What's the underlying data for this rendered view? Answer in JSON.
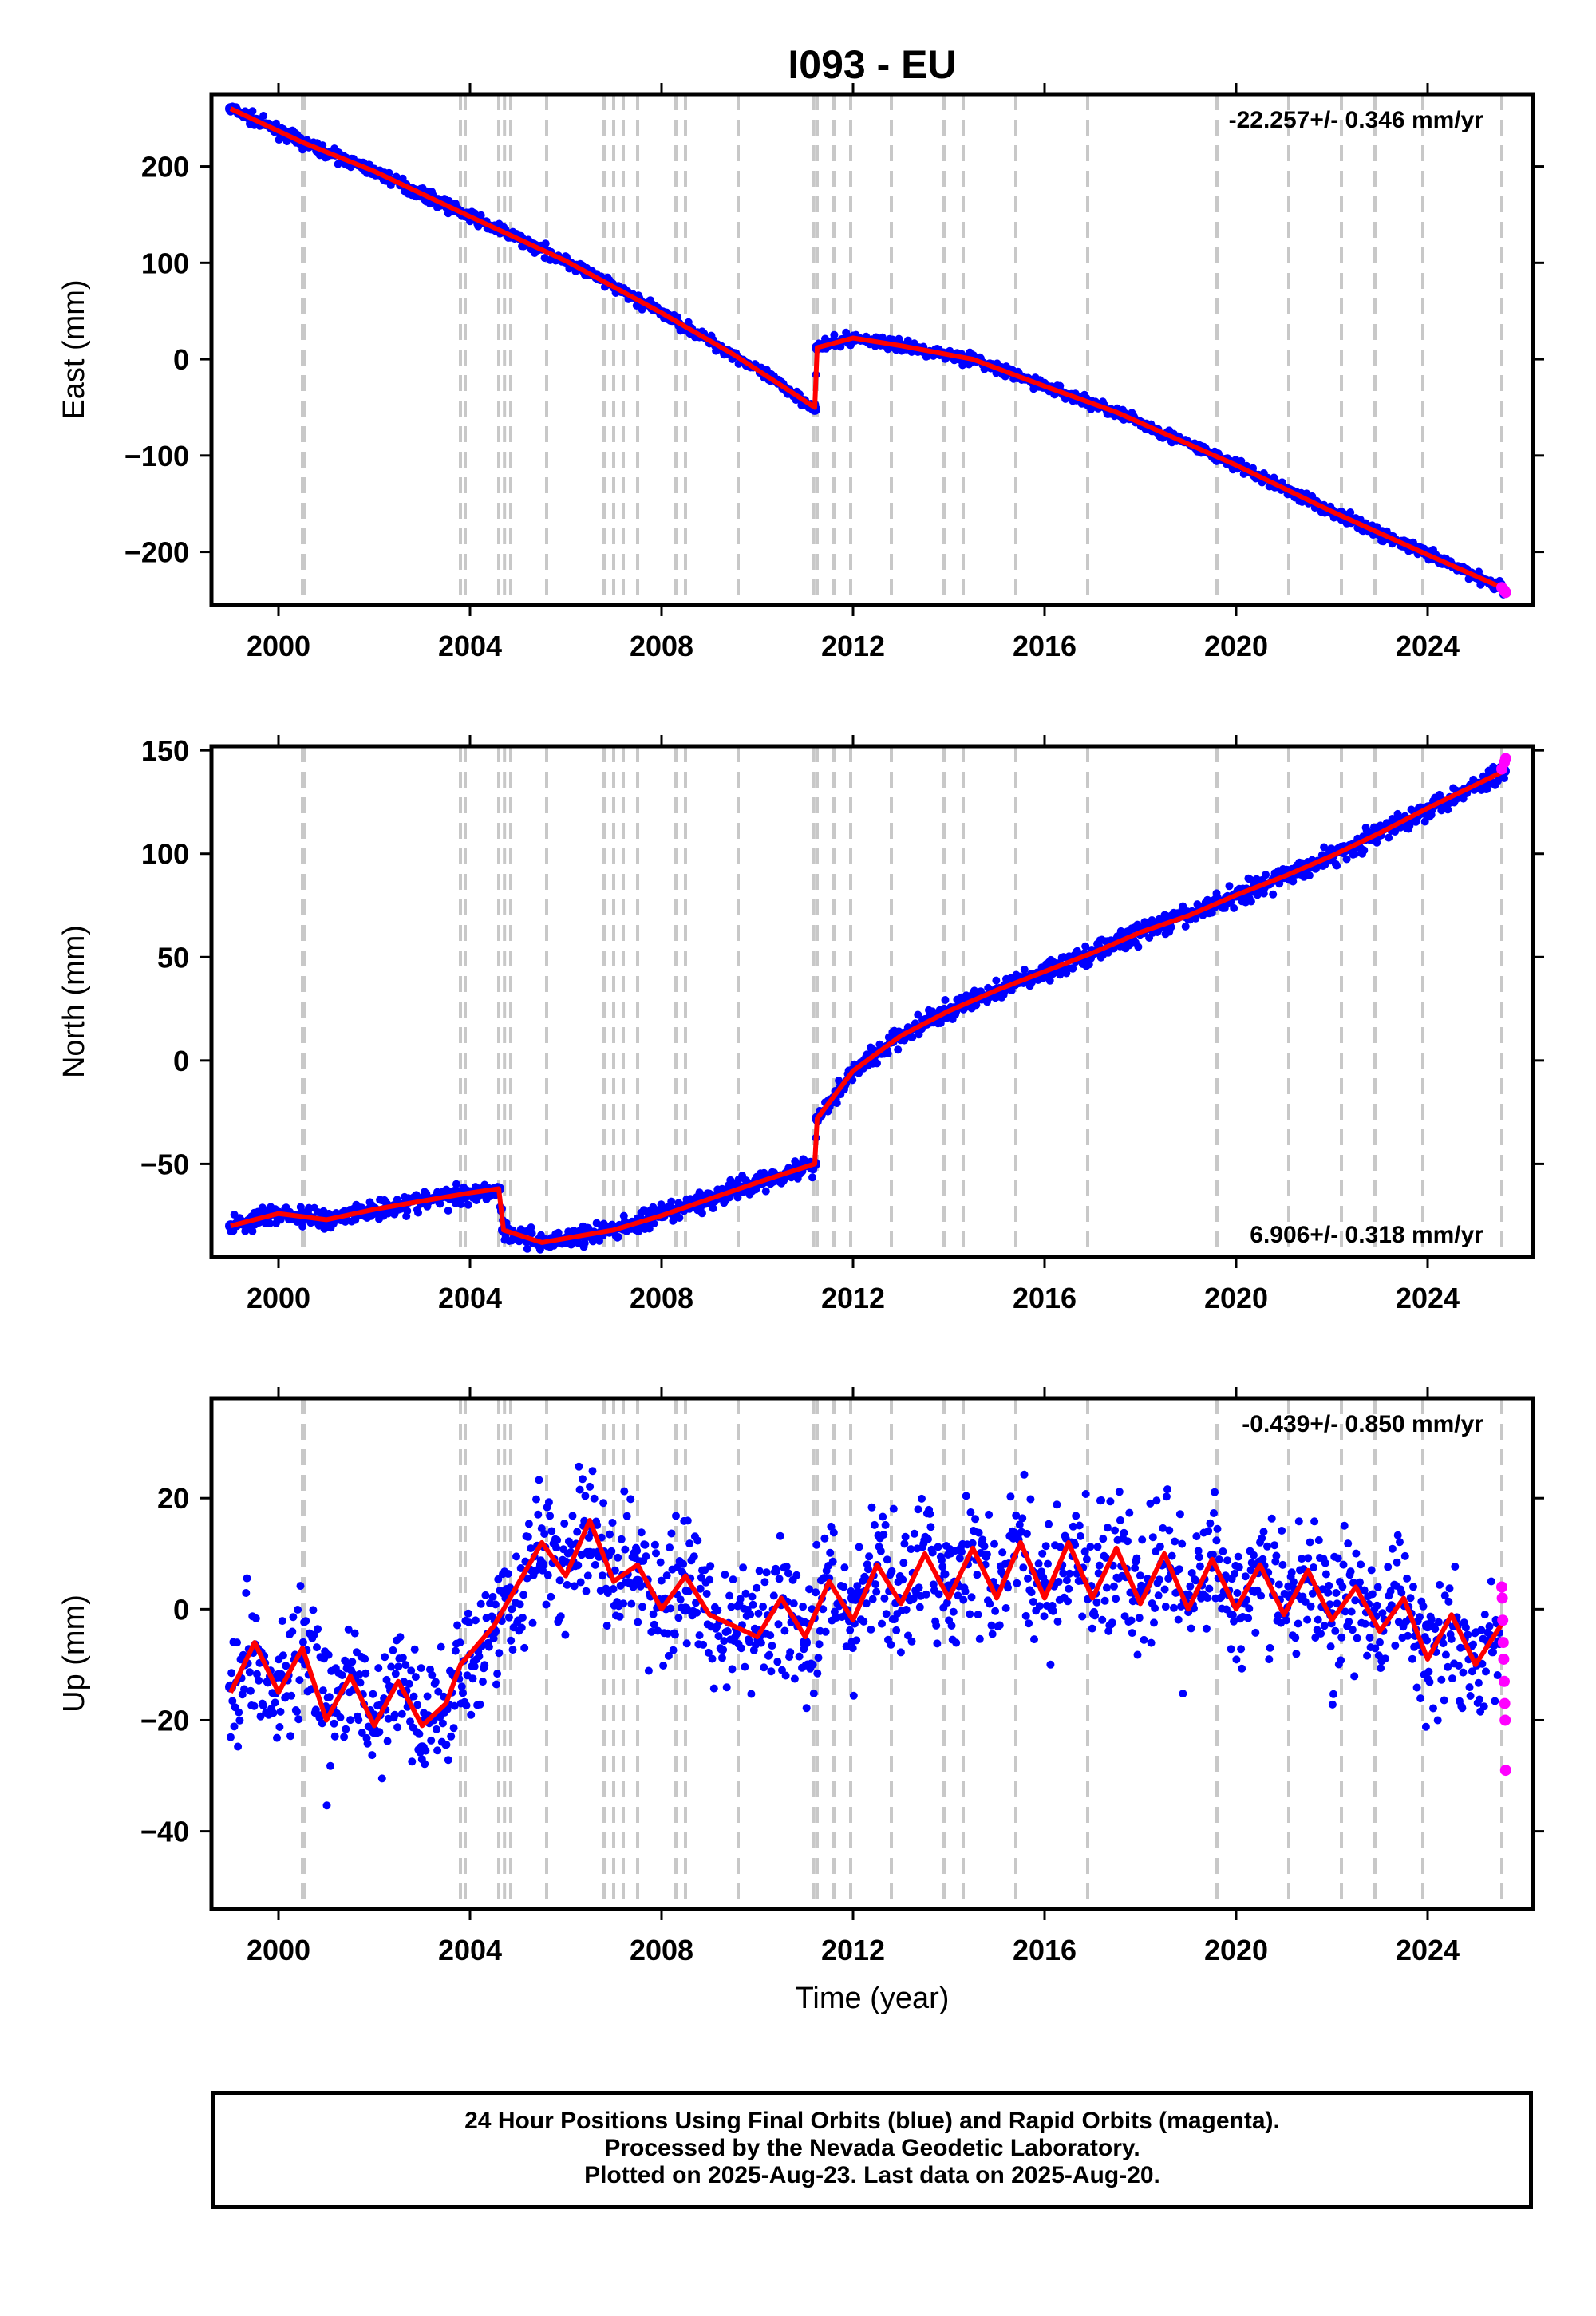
{
  "title": "I093 - EU",
  "footer": {
    "line1": "24 Hour Positions Using Final Orbits (blue) and Rapid Orbits (magenta).",
    "line2": "Processed by the Nevada Geodetic Laboratory.",
    "line3": "Plotted on 2025-Aug-23. Last data on 2025-Aug-20."
  },
  "colors": {
    "final_orbits": "#0000ff",
    "rapid_orbits": "#ff00ff",
    "model": "#ff0000",
    "event_lines": "#c8c8c8"
  },
  "chart_data": [
    {
      "type": "scatter",
      "ylabel": "East (mm)",
      "xlabel": "",
      "xlim": [
        1998.6,
        2026.2
      ],
      "ylim": [
        -255,
        275
      ],
      "x_ticks": [
        2000,
        2004,
        2008,
        2012,
        2016,
        2020,
        2024
      ],
      "y_ticks": [
        -200,
        -100,
        0,
        100,
        200
      ],
      "rate_label": "-22.257+/- 0.346 mm/yr",
      "rate_position": "top-right",
      "series": [
        {
          "values": [
            [
              1999.0,
              260
            ],
            [
              2000.5,
              225
            ],
            [
              2002.0,
              195
            ],
            [
              2004.0,
              148
            ],
            [
              2006.0,
              102
            ],
            [
              2008.0,
              48
            ],
            [
              2009.5,
              5
            ],
            [
              2011.2,
              -52
            ],
            [
              2011.25,
              12
            ],
            [
              2012.0,
              22
            ],
            [
              2013.0,
              14
            ],
            [
              2014.5,
              0
            ],
            [
              2016.0,
              -28
            ],
            [
              2017.5,
              -55
            ],
            [
              2020.0,
              -110
            ],
            [
              2022.0,
              -158
            ],
            [
              2024.0,
              -203
            ],
            [
              2025.6,
              -240
            ]
          ]
        },
        {
          "values": [
            [
              2025.55,
              -237
            ],
            [
              2025.6,
              -240
            ],
            [
              2025.63,
              -242
            ]
          ]
        },
        {
          "values": [
            [
              1999.0,
              260
            ],
            [
              2000.5,
              225
            ],
            [
              2002.0,
              195
            ],
            [
              2004.0,
              148
            ],
            [
              2006.0,
              102
            ],
            [
              2008.0,
              48
            ],
            [
              2009.5,
              5
            ],
            [
              2011.2,
              -50
            ],
            [
              2011.25,
              12
            ],
            [
              2012.0,
              22
            ],
            [
              2013.0,
              14
            ],
            [
              2014.5,
              0
            ],
            [
              2016.0,
              -28
            ],
            [
              2017.5,
              -55
            ],
            [
              2020.0,
              -110
            ],
            [
              2022.0,
              -158
            ],
            [
              2024.0,
              -203
            ],
            [
              2025.6,
              -238
            ]
          ]
        }
      ]
    },
    {
      "type": "scatter",
      "ylabel": "North (mm)",
      "xlabel": "",
      "xlim": [
        1998.6,
        2026.2
      ],
      "ylim": [
        -95,
        152
      ],
      "x_ticks": [
        2000,
        2004,
        2008,
        2012,
        2016,
        2020,
        2024
      ],
      "y_ticks": [
        -50,
        0,
        50,
        100,
        150
      ],
      "rate_label": "6.906+/- 0.318 mm/yr",
      "rate_position": "bottom-right",
      "series": [
        {
          "values": [
            [
              1999.0,
              -80
            ],
            [
              2000.0,
              -74
            ],
            [
              2001.0,
              -77
            ],
            [
              2002.0,
              -72
            ],
            [
              2003.0,
              -68
            ],
            [
              2004.0,
              -64
            ],
            [
              2004.6,
              -62
            ],
            [
              2004.7,
              -82
            ],
            [
              2005.5,
              -88
            ],
            [
              2007.0,
              -82
            ],
            [
              2008.0,
              -75
            ],
            [
              2009.0,
              -67
            ],
            [
              2010.0,
              -59
            ],
            [
              2011.2,
              -50
            ],
            [
              2011.25,
              -28
            ],
            [
              2012.0,
              -5
            ],
            [
              2013.0,
              12
            ],
            [
              2014.0,
              24
            ],
            [
              2015.0,
              34
            ],
            [
              2016.0,
              43
            ],
            [
              2017.0,
              52
            ],
            [
              2018.0,
              62
            ],
            [
              2019.0,
              70
            ],
            [
              2020.0,
              80
            ],
            [
              2021.0,
              89
            ],
            [
              2022.0,
              99
            ],
            [
              2023.0,
              110
            ],
            [
              2024.0,
              122
            ],
            [
              2025.6,
              140
            ]
          ]
        },
        {
          "values": [
            [
              2025.55,
              141
            ],
            [
              2025.6,
              144
            ],
            [
              2025.63,
              146
            ]
          ]
        },
        {
          "values": [
            [
              1999.0,
              -80
            ],
            [
              2000.0,
              -74
            ],
            [
              2001.0,
              -77
            ],
            [
              2002.0,
              -72
            ],
            [
              2003.0,
              -68
            ],
            [
              2004.0,
              -64
            ],
            [
              2004.6,
              -62
            ],
            [
              2004.7,
              -82
            ],
            [
              2005.5,
              -88
            ],
            [
              2007.0,
              -82
            ],
            [
              2008.0,
              -75
            ],
            [
              2009.0,
              -67
            ],
            [
              2010.0,
              -59
            ],
            [
              2011.2,
              -50
            ],
            [
              2011.25,
              -28
            ],
            [
              2012.0,
              -5
            ],
            [
              2013.0,
              12
            ],
            [
              2014.0,
              24
            ],
            [
              2015.0,
              34
            ],
            [
              2016.0,
              43
            ],
            [
              2017.0,
              52
            ],
            [
              2018.0,
              62
            ],
            [
              2019.0,
              70
            ],
            [
              2020.0,
              80
            ],
            [
              2021.0,
              89
            ],
            [
              2022.0,
              99
            ],
            [
              2023.0,
              110
            ],
            [
              2024.0,
              122
            ],
            [
              2025.6,
              140
            ]
          ]
        }
      ]
    },
    {
      "type": "scatter",
      "ylabel": "Up (mm)",
      "xlabel": "Time (year)",
      "xlim": [
        1998.6,
        2026.2
      ],
      "ylim": [
        -54,
        38
      ],
      "x_ticks": [
        2000,
        2004,
        2008,
        2012,
        2016,
        2020,
        2024
      ],
      "y_ticks": [
        -40,
        -20,
        0,
        20
      ],
      "rate_label": "-0.439+/- 0.850 mm/yr",
      "rate_position": "top-right",
      "series": [
        {
          "values": [
            [
              1999.0,
              -14
            ],
            [
              2000.0,
              -12
            ],
            [
              2001.0,
              -18
            ],
            [
              2002.0,
              -22
            ],
            [
              2003.0,
              -25
            ],
            [
              2003.7,
              -12
            ],
            [
              2004.5,
              -4
            ],
            [
              2005.5,
              8
            ],
            [
              2006.5,
              10
            ],
            [
              2007.5,
              5
            ],
            [
              2008.5,
              0
            ],
            [
              2010.0,
              -4
            ],
            [
              2011.0,
              -6
            ],
            [
              2012.0,
              2
            ],
            [
              2014.0,
              4
            ],
            [
              2016.0,
              4
            ],
            [
              2018.0,
              3
            ],
            [
              2020.0,
              1
            ],
            [
              2022.0,
              -1
            ],
            [
              2024.0,
              -3
            ],
            [
              2025.5,
              -6
            ]
          ]
        },
        {
          "values": [
            [
              2025.55,
              4
            ],
            [
              2025.56,
              2
            ],
            [
              2025.57,
              -2
            ],
            [
              2025.58,
              -6
            ],
            [
              2025.59,
              -9
            ],
            [
              2025.6,
              -13
            ],
            [
              2025.61,
              -17
            ],
            [
              2025.62,
              -20
            ],
            [
              2025.63,
              -29
            ]
          ]
        },
        {
          "values": [
            [
              1999.0,
              -15
            ],
            [
              1999.5,
              -6
            ],
            [
              2000.0,
              -15
            ],
            [
              2000.5,
              -7
            ],
            [
              2001.0,
              -20
            ],
            [
              2001.5,
              -12
            ],
            [
              2002.0,
              -21
            ],
            [
              2002.5,
              -13
            ],
            [
              2003.0,
              -21
            ],
            [
              2003.5,
              -17
            ],
            [
              2003.8,
              -10
            ],
            [
              2004.5,
              -3
            ],
            [
              2005.5,
              12
            ],
            [
              2006.0,
              6
            ],
            [
              2006.5,
              16
            ],
            [
              2007.0,
              5
            ],
            [
              2007.5,
              8
            ],
            [
              2008.0,
              0
            ],
            [
              2008.5,
              6
            ],
            [
              2009.0,
              -1
            ],
            [
              2010.0,
              -5
            ],
            [
              2010.5,
              2
            ],
            [
              2011.0,
              -5
            ],
            [
              2011.5,
              5
            ],
            [
              2012.0,
              -2
            ],
            [
              2012.5,
              8
            ],
            [
              2013.0,
              1
            ],
            [
              2013.5,
              10
            ],
            [
              2014.0,
              2
            ],
            [
              2014.5,
              11
            ],
            [
              2015.0,
              2
            ],
            [
              2015.5,
              12
            ],
            [
              2016.0,
              2
            ],
            [
              2016.5,
              12
            ],
            [
              2017.0,
              2
            ],
            [
              2017.5,
              11
            ],
            [
              2018.0,
              1
            ],
            [
              2018.5,
              10
            ],
            [
              2019.0,
              0
            ],
            [
              2019.5,
              9
            ],
            [
              2020.0,
              0
            ],
            [
              2020.5,
              8
            ],
            [
              2021.0,
              -1
            ],
            [
              2021.5,
              7
            ],
            [
              2022.0,
              -2
            ],
            [
              2022.5,
              4
            ],
            [
              2023.0,
              -4
            ],
            [
              2023.5,
              2
            ],
            [
              2024.0,
              -9
            ],
            [
              2024.5,
              -1
            ],
            [
              2025.0,
              -10
            ],
            [
              2025.6,
              -2
            ]
          ]
        }
      ]
    }
  ]
}
